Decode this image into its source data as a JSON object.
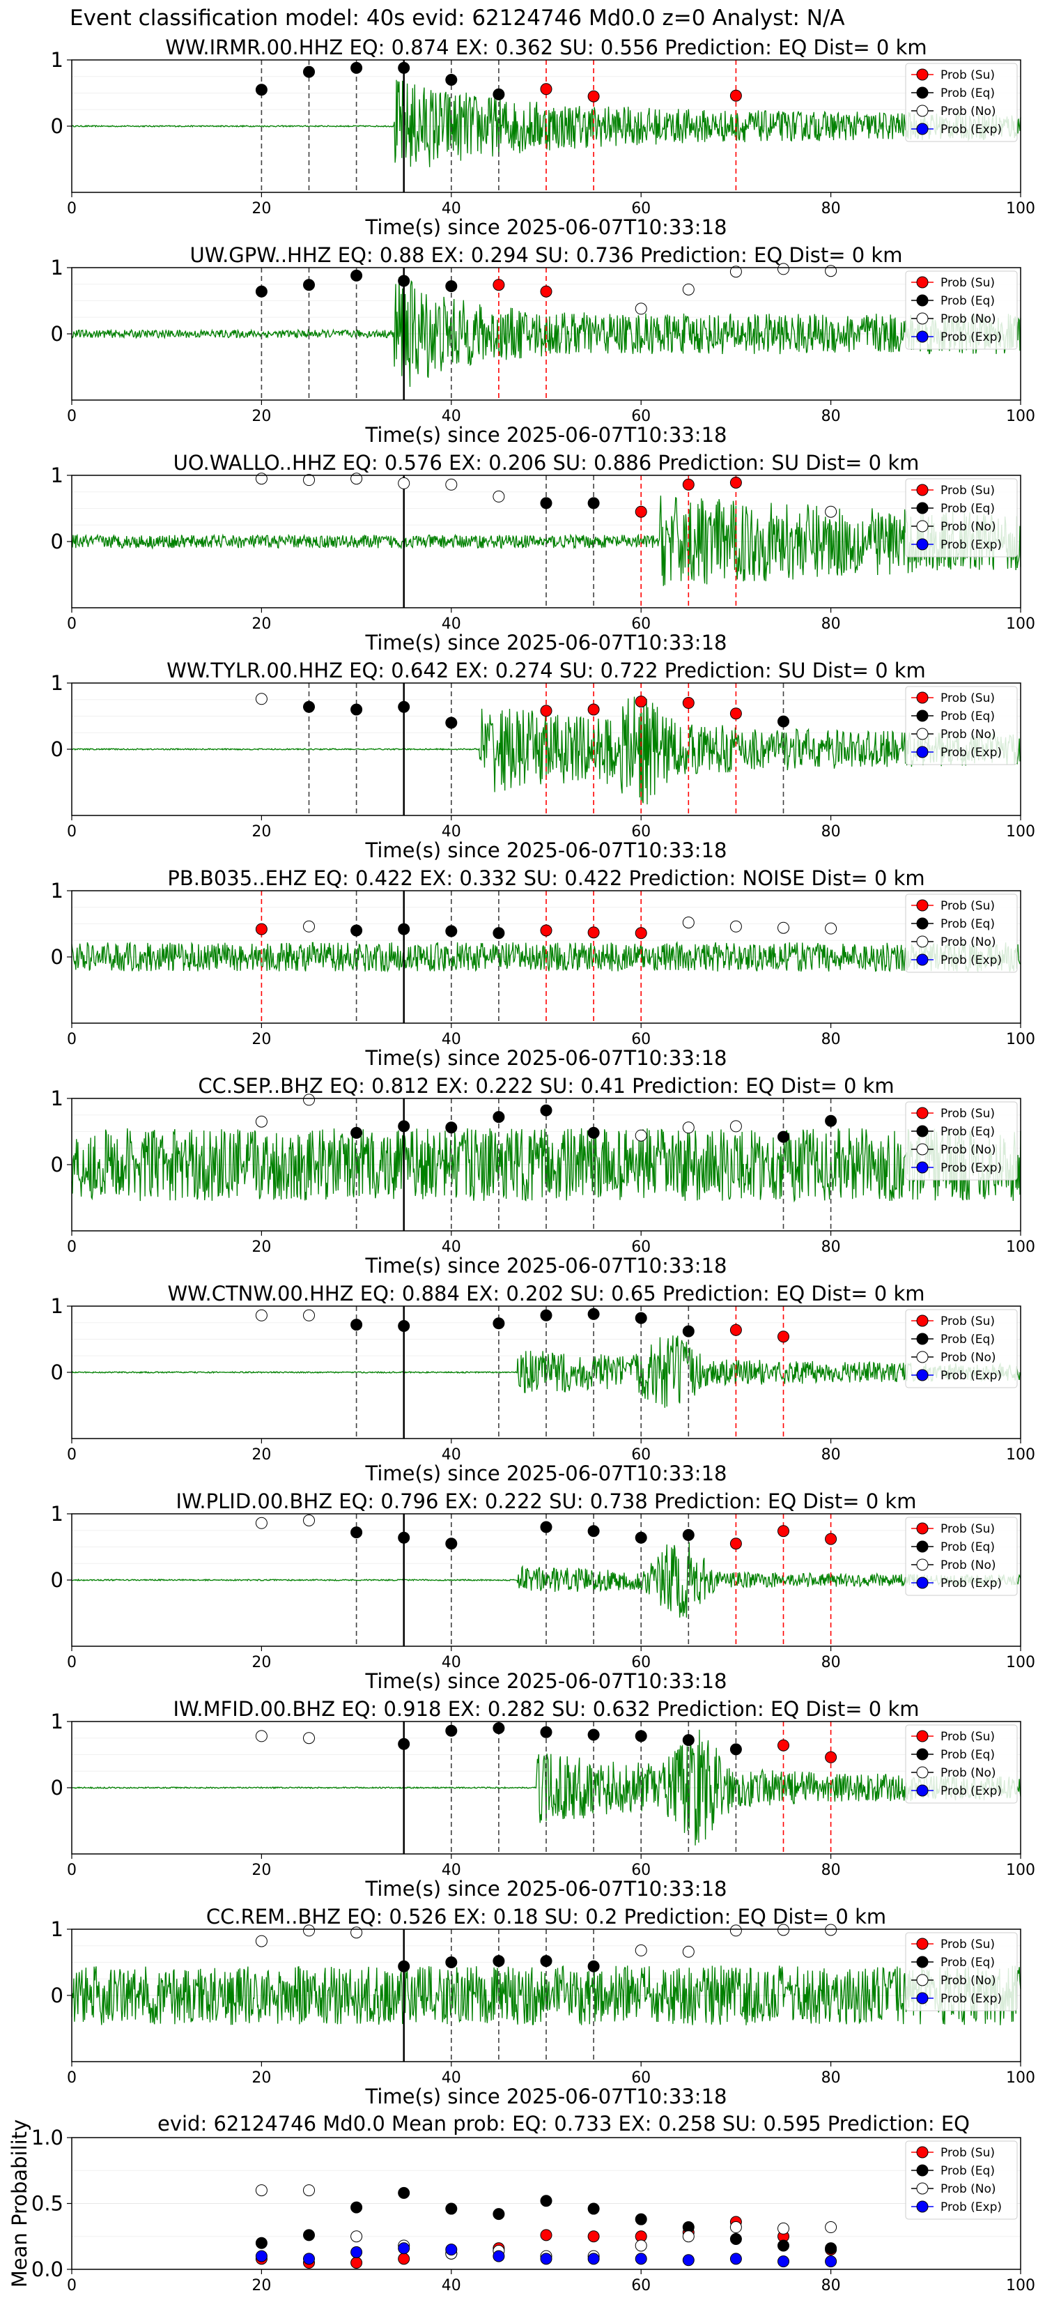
{
  "figure": {
    "suptitle": "Event classification model: 40s evid: 62124746 Md0.0 z=0 Analyst: N/A"
  },
  "legend": [
    "Prob (Su)",
    "Prob (Eq)",
    "Prob (No)",
    "Prob (Exp)"
  ],
  "colors": {
    "su": "#ff0000",
    "eq": "#000000",
    "no": "#ffffff",
    "exp": "#0000ff",
    "trace": "#008000",
    "dash_su": "#ff0000",
    "dash_eq": "#404040"
  },
  "chart_data": [
    {
      "type": "line",
      "title": "WW.IRMR.00.HHZ   EQ: 0.874  EX: 0.362  SU: 0.556   Prediction: EQ    Dist= 0 km",
      "xlabel": "Time(s) since 2025-06-07T10:33:18",
      "xlim": [
        0,
        100
      ],
      "ylim": [
        -1,
        1
      ],
      "xticks": [
        0,
        20,
        40,
        60,
        80,
        100
      ],
      "yticks": [
        0,
        1
      ],
      "origin_time": 35,
      "trace": {
        "amp": 0.55,
        "base": 0.01,
        "onset": 34,
        "decay": 14,
        "burst": null
      },
      "points": [
        {
          "t": 20,
          "p": 0.55,
          "cls": "eq"
        },
        {
          "t": 25,
          "p": 0.82,
          "cls": "eq"
        },
        {
          "t": 30,
          "p": 0.88,
          "cls": "eq"
        },
        {
          "t": 35,
          "p": 0.88,
          "cls": "eq"
        },
        {
          "t": 40,
          "p": 0.7,
          "cls": "eq"
        },
        {
          "t": 45,
          "p": 0.48,
          "cls": "eq"
        },
        {
          "t": 50,
          "p": 0.56,
          "cls": "su"
        },
        {
          "t": 55,
          "p": 0.45,
          "cls": "su"
        },
        {
          "t": 70,
          "p": 0.46,
          "cls": "su"
        }
      ]
    },
    {
      "type": "line",
      "title": "UW.GPW..HHZ   EQ: 0.88  EX: 0.294  SU: 0.736   Prediction: EQ    Dist= 0 km",
      "xlabel": "Time(s) since 2025-06-07T10:33:18",
      "xlim": [
        0,
        100
      ],
      "ylim": [
        -1,
        1
      ],
      "xticks": [
        0,
        20,
        40,
        60,
        80,
        100
      ],
      "yticks": [
        0,
        1
      ],
      "origin_time": 35,
      "trace": {
        "amp": 0.7,
        "base": 0.06,
        "onset": 34,
        "decay": 6,
        "burst": null
      },
      "points": [
        {
          "t": 20,
          "p": 0.64,
          "cls": "eq"
        },
        {
          "t": 25,
          "p": 0.74,
          "cls": "eq"
        },
        {
          "t": 30,
          "p": 0.88,
          "cls": "eq"
        },
        {
          "t": 35,
          "p": 0.8,
          "cls": "eq"
        },
        {
          "t": 40,
          "p": 0.72,
          "cls": "eq"
        },
        {
          "t": 45,
          "p": 0.74,
          "cls": "su"
        },
        {
          "t": 50,
          "p": 0.64,
          "cls": "su"
        },
        {
          "t": 60,
          "p": 0.38,
          "cls": "no"
        },
        {
          "t": 65,
          "p": 0.67,
          "cls": "no"
        },
        {
          "t": 70,
          "p": 0.94,
          "cls": "no"
        },
        {
          "t": 75,
          "p": 0.98,
          "cls": "no"
        },
        {
          "t": 80,
          "p": 0.95,
          "cls": "no"
        }
      ]
    },
    {
      "type": "line",
      "title": "UO.WALLO..HHZ   EQ: 0.576  EX: 0.206  SU: 0.886   Prediction: SU    Dist= 0 km",
      "xlabel": "Time(s) since 2025-06-07T10:33:18",
      "xlim": [
        0,
        100
      ],
      "ylim": [
        -1,
        1
      ],
      "xticks": [
        0,
        20,
        40,
        60,
        80,
        100
      ],
      "yticks": [
        0,
        1
      ],
      "origin_time": 35,
      "trace": {
        "amp": 0.45,
        "base": 0.1,
        "onset": 62,
        "decay": 40,
        "burst": null
      },
      "points": [
        {
          "t": 20,
          "p": 0.95,
          "cls": "no"
        },
        {
          "t": 25,
          "p": 0.93,
          "cls": "no"
        },
        {
          "t": 30,
          "p": 0.95,
          "cls": "no"
        },
        {
          "t": 35,
          "p": 0.88,
          "cls": "no"
        },
        {
          "t": 40,
          "p": 0.86,
          "cls": "no"
        },
        {
          "t": 45,
          "p": 0.68,
          "cls": "no"
        },
        {
          "t": 50,
          "p": 0.58,
          "cls": "eq"
        },
        {
          "t": 55,
          "p": 0.58,
          "cls": "eq"
        },
        {
          "t": 60,
          "p": 0.45,
          "cls": "su"
        },
        {
          "t": 65,
          "p": 0.86,
          "cls": "su"
        },
        {
          "t": 70,
          "p": 0.89,
          "cls": "su"
        },
        {
          "t": 80,
          "p": 0.45,
          "cls": "no"
        }
      ]
    },
    {
      "type": "line",
      "title": "WW.TYLR.00.HHZ   EQ: 0.642  EX: 0.274  SU: 0.722   Prediction: SU    Dist= 0 km",
      "xlabel": "Time(s) since 2025-06-07T10:33:18",
      "xlim": [
        0,
        100
      ],
      "ylim": [
        -1,
        1
      ],
      "xticks": [
        0,
        20,
        40,
        60,
        80,
        100
      ],
      "yticks": [
        0,
        1
      ],
      "origin_time": 35,
      "trace": {
        "amp": 0.5,
        "base": 0.01,
        "onset": 43,
        "decay": 25,
        "burst": [
          60,
          0.5
        ]
      },
      "points": [
        {
          "t": 20,
          "p": 0.76,
          "cls": "no"
        },
        {
          "t": 25,
          "p": 0.64,
          "cls": "eq"
        },
        {
          "t": 30,
          "p": 0.6,
          "cls": "eq"
        },
        {
          "t": 35,
          "p": 0.64,
          "cls": "eq"
        },
        {
          "t": 40,
          "p": 0.4,
          "cls": "eq"
        },
        {
          "t": 50,
          "p": 0.58,
          "cls": "su"
        },
        {
          "t": 55,
          "p": 0.6,
          "cls": "su"
        },
        {
          "t": 60,
          "p": 0.72,
          "cls": "su"
        },
        {
          "t": 65,
          "p": 0.7,
          "cls": "su"
        },
        {
          "t": 70,
          "p": 0.54,
          "cls": "su"
        },
        {
          "t": 75,
          "p": 0.42,
          "cls": "eq"
        }
      ]
    },
    {
      "type": "line",
      "title": "PB.B035..EHZ   EQ: 0.422  EX: 0.332  SU: 0.422   Prediction: NOISE    Dist= 0 km",
      "xlabel": "Time(s) since 2025-06-07T10:33:18",
      "xlim": [
        0,
        100
      ],
      "ylim": [
        -1,
        1
      ],
      "xticks": [
        0,
        20,
        40,
        60,
        80,
        100
      ],
      "yticks": [
        0,
        1
      ],
      "origin_time": 35,
      "trace": {
        "amp": 0.0,
        "base": 0.22,
        "onset": 0,
        "decay": 10,
        "burst": null
      },
      "points": [
        {
          "t": 20,
          "p": 0.42,
          "cls": "su"
        },
        {
          "t": 25,
          "p": 0.46,
          "cls": "no"
        },
        {
          "t": 30,
          "p": 0.4,
          "cls": "eq"
        },
        {
          "t": 35,
          "p": 0.42,
          "cls": "eq"
        },
        {
          "t": 40,
          "p": 0.39,
          "cls": "eq"
        },
        {
          "t": 45,
          "p": 0.36,
          "cls": "eq"
        },
        {
          "t": 50,
          "p": 0.4,
          "cls": "su"
        },
        {
          "t": 55,
          "p": 0.37,
          "cls": "su"
        },
        {
          "t": 60,
          "p": 0.36,
          "cls": "su"
        },
        {
          "t": 65,
          "p": 0.52,
          "cls": "no"
        },
        {
          "t": 70,
          "p": 0.46,
          "cls": "no"
        },
        {
          "t": 75,
          "p": 0.44,
          "cls": "no"
        },
        {
          "t": 80,
          "p": 0.43,
          "cls": "no"
        }
      ]
    },
    {
      "type": "line",
      "title": "CC.SEP..BHZ   EQ: 0.812  EX: 0.222  SU: 0.41   Prediction: EQ    Dist= 0 km",
      "xlabel": "Time(s) since 2025-06-07T10:33:18",
      "xlim": [
        0,
        100
      ],
      "ylim": [
        -1,
        1
      ],
      "xticks": [
        0,
        20,
        40,
        60,
        80,
        100
      ],
      "yticks": [
        0,
        1
      ],
      "origin_time": 35,
      "trace": {
        "amp": 0.0,
        "base": 0.55,
        "onset": 0,
        "decay": 10,
        "burst": null
      },
      "points": [
        {
          "t": 20,
          "p": 0.65,
          "cls": "no"
        },
        {
          "t": 25,
          "p": 0.98,
          "cls": "no"
        },
        {
          "t": 30,
          "p": 0.48,
          "cls": "eq"
        },
        {
          "t": 35,
          "p": 0.58,
          "cls": "eq"
        },
        {
          "t": 40,
          "p": 0.56,
          "cls": "eq"
        },
        {
          "t": 45,
          "p": 0.72,
          "cls": "eq"
        },
        {
          "t": 50,
          "p": 0.82,
          "cls": "eq"
        },
        {
          "t": 55,
          "p": 0.48,
          "cls": "eq"
        },
        {
          "t": 60,
          "p": 0.44,
          "cls": "no"
        },
        {
          "t": 65,
          "p": 0.56,
          "cls": "no"
        },
        {
          "t": 70,
          "p": 0.58,
          "cls": "no"
        },
        {
          "t": 75,
          "p": 0.42,
          "cls": "eq"
        },
        {
          "t": 80,
          "p": 0.66,
          "cls": "eq"
        }
      ]
    },
    {
      "type": "line",
      "title": "WW.CTNW.00.HHZ   EQ: 0.884  EX: 0.202  SU: 0.65   Prediction: EQ    Dist= 0 km",
      "xlabel": "Time(s) since 2025-06-07T10:33:18",
      "xlim": [
        0,
        100
      ],
      "ylim": [
        -1,
        1
      ],
      "xticks": [
        0,
        20,
        40,
        60,
        80,
        100
      ],
      "yticks": [
        0,
        1
      ],
      "origin_time": 35,
      "trace": {
        "amp": 0.25,
        "base": 0.01,
        "onset": 47,
        "decay": 25,
        "burst": [
          63,
          0.45
        ]
      },
      "points": [
        {
          "t": 20,
          "p": 0.86,
          "cls": "no"
        },
        {
          "t": 25,
          "p": 0.86,
          "cls": "no"
        },
        {
          "t": 30,
          "p": 0.72,
          "cls": "eq"
        },
        {
          "t": 35,
          "p": 0.7,
          "cls": "eq"
        },
        {
          "t": 45,
          "p": 0.74,
          "cls": "eq"
        },
        {
          "t": 50,
          "p": 0.86,
          "cls": "eq"
        },
        {
          "t": 55,
          "p": 0.88,
          "cls": "eq"
        },
        {
          "t": 60,
          "p": 0.82,
          "cls": "eq"
        },
        {
          "t": 65,
          "p": 0.62,
          "cls": "eq"
        },
        {
          "t": 70,
          "p": 0.64,
          "cls": "su"
        },
        {
          "t": 75,
          "p": 0.54,
          "cls": "su"
        }
      ]
    },
    {
      "type": "line",
      "title": "IW.PLID.00.BHZ   EQ: 0.796  EX: 0.222  SU: 0.738   Prediction: EQ    Dist= 0 km",
      "xlabel": "Time(s) since 2025-06-07T10:33:18",
      "xlim": [
        0,
        100
      ],
      "ylim": [
        -1,
        1
      ],
      "xticks": [
        0,
        20,
        40,
        60,
        80,
        100
      ],
      "yticks": [
        0,
        1
      ],
      "origin_time": 35,
      "trace": {
        "amp": 0.15,
        "base": 0.01,
        "onset": 47,
        "decay": 25,
        "burst": [
          64,
          0.6
        ]
      },
      "points": [
        {
          "t": 20,
          "p": 0.86,
          "cls": "no"
        },
        {
          "t": 25,
          "p": 0.9,
          "cls": "no"
        },
        {
          "t": 30,
          "p": 0.72,
          "cls": "eq"
        },
        {
          "t": 35,
          "p": 0.64,
          "cls": "eq"
        },
        {
          "t": 40,
          "p": 0.55,
          "cls": "eq"
        },
        {
          "t": 50,
          "p": 0.8,
          "cls": "eq"
        },
        {
          "t": 55,
          "p": 0.74,
          "cls": "eq"
        },
        {
          "t": 60,
          "p": 0.64,
          "cls": "eq"
        },
        {
          "t": 65,
          "p": 0.68,
          "cls": "eq"
        },
        {
          "t": 70,
          "p": 0.55,
          "cls": "su"
        },
        {
          "t": 75,
          "p": 0.74,
          "cls": "su"
        },
        {
          "t": 80,
          "p": 0.62,
          "cls": "su"
        }
      ]
    },
    {
      "type": "line",
      "title": "IW.MFID.00.BHZ   EQ: 0.918  EX: 0.282  SU: 0.632   Prediction: EQ    Dist= 0 km",
      "xlabel": "Time(s) since 2025-06-07T10:33:18",
      "xlim": [
        0,
        100
      ],
      "ylim": [
        -1,
        1
      ],
      "xticks": [
        0,
        20,
        40,
        60,
        80,
        100
      ],
      "yticks": [
        0,
        1
      ],
      "origin_time": 35,
      "trace": {
        "amp": 0.4,
        "base": 0.01,
        "onset": 49,
        "decay": 20,
        "burst": [
          66,
          0.6
        ]
      },
      "points": [
        {
          "t": 20,
          "p": 0.78,
          "cls": "no"
        },
        {
          "t": 25,
          "p": 0.75,
          "cls": "no"
        },
        {
          "t": 35,
          "p": 0.66,
          "cls": "eq"
        },
        {
          "t": 40,
          "p": 0.86,
          "cls": "eq"
        },
        {
          "t": 45,
          "p": 0.9,
          "cls": "eq"
        },
        {
          "t": 50,
          "p": 0.84,
          "cls": "eq"
        },
        {
          "t": 55,
          "p": 0.8,
          "cls": "eq"
        },
        {
          "t": 60,
          "p": 0.78,
          "cls": "eq"
        },
        {
          "t": 65,
          "p": 0.72,
          "cls": "eq"
        },
        {
          "t": 70,
          "p": 0.58,
          "cls": "eq"
        },
        {
          "t": 75,
          "p": 0.64,
          "cls": "su"
        },
        {
          "t": 80,
          "p": 0.46,
          "cls": "su"
        }
      ]
    },
    {
      "type": "line",
      "title": "CC.REM..BHZ   EQ: 0.526  EX: 0.18  SU: 0.2   Prediction: EQ    Dist= 0 km",
      "xlabel": "Time(s) since 2025-06-07T10:33:18",
      "xlim": [
        0,
        100
      ],
      "ylim": [
        -1,
        1
      ],
      "xticks": [
        0,
        20,
        40,
        60,
        80,
        100
      ],
      "yticks": [
        0,
        1
      ],
      "origin_time": 35,
      "trace": {
        "amp": 0.0,
        "base": 0.45,
        "onset": 0,
        "decay": 10,
        "burst": null
      },
      "points": [
        {
          "t": 20,
          "p": 0.82,
          "cls": "no"
        },
        {
          "t": 25,
          "p": 0.98,
          "cls": "no"
        },
        {
          "t": 30,
          "p": 0.95,
          "cls": "no"
        },
        {
          "t": 35,
          "p": 0.44,
          "cls": "eq"
        },
        {
          "t": 40,
          "p": 0.5,
          "cls": "eq"
        },
        {
          "t": 45,
          "p": 0.52,
          "cls": "eq"
        },
        {
          "t": 50,
          "p": 0.52,
          "cls": "eq"
        },
        {
          "t": 55,
          "p": 0.44,
          "cls": "eq"
        },
        {
          "t": 60,
          "p": 0.68,
          "cls": "no"
        },
        {
          "t": 65,
          "p": 0.66,
          "cls": "no"
        },
        {
          "t": 70,
          "p": 0.98,
          "cls": "no"
        },
        {
          "t": 75,
          "p": 0.99,
          "cls": "no"
        },
        {
          "t": 80,
          "p": 0.99,
          "cls": "no"
        }
      ]
    },
    {
      "type": "scatter",
      "title": "evid: 62124746  Md0.0   Mean prob:   EQ: 0.733  EX: 0.258  SU: 0.595   Prediction: EQ",
      "xlabel": "",
      "ylabel": "Mean Probability",
      "xlim": [
        0,
        100
      ],
      "ylim": [
        0,
        1
      ],
      "xticks": [
        0,
        20,
        40,
        60,
        80,
        100
      ],
      "yticks": [
        0.0,
        0.5,
        1.0
      ],
      "x": [
        20,
        25,
        30,
        35,
        40,
        45,
        50,
        55,
        60,
        65,
        70,
        75,
        80
      ],
      "series": [
        {
          "name": "Prob (Su)",
          "cls": "su",
          "values": [
            0.08,
            0.05,
            0.05,
            0.08,
            0.12,
            0.16,
            0.26,
            0.25,
            0.25,
            0.28,
            0.36,
            0.25,
            0.15
          ]
        },
        {
          "name": "Prob (Eq)",
          "cls": "eq",
          "values": [
            0.2,
            0.26,
            0.47,
            0.58,
            0.46,
            0.42,
            0.52,
            0.46,
            0.38,
            0.32,
            0.23,
            0.18,
            0.16
          ]
        },
        {
          "name": "Prob (No)",
          "cls": "no",
          "values": [
            0.6,
            0.6,
            0.25,
            0.18,
            0.12,
            0.14,
            0.1,
            0.1,
            0.18,
            0.25,
            0.32,
            0.31,
            0.32
          ]
        },
        {
          "name": "Prob (Exp)",
          "cls": "exp",
          "values": [
            0.1,
            0.08,
            0.13,
            0.16,
            0.15,
            0.1,
            0.08,
            0.08,
            0.08,
            0.07,
            0.08,
            0.06,
            0.06
          ]
        }
      ]
    }
  ]
}
